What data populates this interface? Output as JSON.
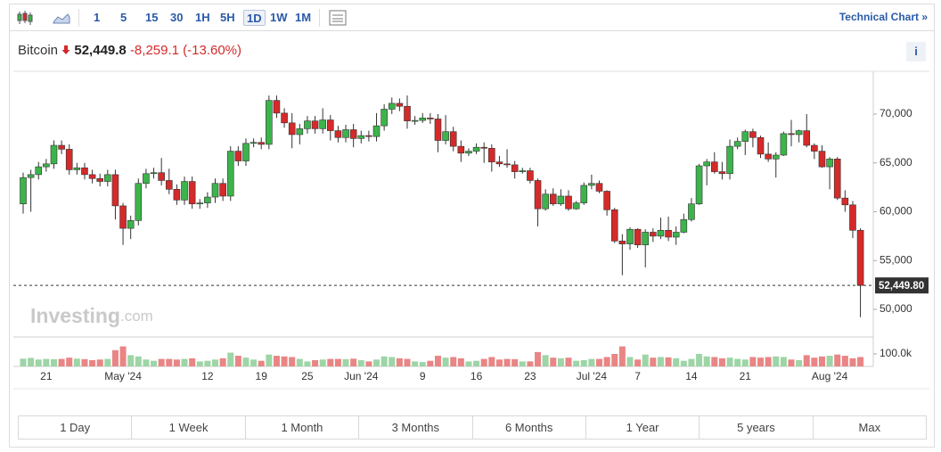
{
  "toolbar": {
    "intervals": [
      "1",
      "5",
      "15",
      "30",
      "1H",
      "5H",
      "1D",
      "1W",
      "1M"
    ],
    "link": "Technical Chart »"
  },
  "header": {
    "name": "Bitcoin",
    "price": "52,449.8",
    "change": "-8,259.1",
    "change_pct": "(-13.60%)",
    "info": "i"
  },
  "watermark": [
    "Investing",
    ".com"
  ],
  "ranges": [
    "1 Day",
    "1 Week",
    "1 Month",
    "3 Months",
    "6 Months",
    "1 Year",
    "5 years",
    "Max"
  ],
  "chart_data": {
    "type": "candlestick",
    "categories": [
      null,
      null,
      null,
      "21",
      null,
      null,
      null,
      null,
      null,
      null,
      null,
      null,
      null,
      "May '24",
      null,
      null,
      null,
      null,
      null,
      null,
      null,
      null,
      null,
      null,
      "12",
      null,
      null,
      null,
      null,
      null,
      null,
      "19",
      null,
      null,
      null,
      null,
      null,
      "25",
      null,
      null,
      null,
      null,
      null,
      null,
      "Jun '24",
      null,
      null,
      null,
      null,
      null,
      null,
      null,
      "9",
      null,
      null,
      null,
      null,
      null,
      null,
      "16",
      null,
      null,
      null,
      null,
      null,
      null,
      "23",
      null,
      null,
      null,
      null,
      null,
      null,
      null,
      "Jul '24",
      null,
      null,
      null,
      null,
      null,
      "7",
      null,
      null,
      null,
      null,
      null,
      null,
      "14",
      null,
      null,
      null,
      null,
      null,
      null,
      "21",
      null,
      null,
      null,
      null,
      null,
      null,
      null,
      null,
      null,
      null,
      "Aug '24",
      null,
      null,
      null,
      null
    ],
    "open": [
      60800,
      63500,
      63800,
      64600,
      64900,
      66800,
      66400,
      64300,
      64500,
      63800,
      63400,
      63100,
      63800,
      60600,
      58300,
      59100,
      62900,
      63900,
      64000,
      63200,
      62300,
      61200,
      63100,
      60800,
      60900,
      61500,
      62900,
      61600,
      66200,
      65200,
      67000,
      67100,
      66900,
      71400,
      70100,
      69100,
      67900,
      68500,
      69300,
      68500,
      69400,
      68300,
      67600,
      68400,
      67500,
      67800,
      67700,
      68800,
      70500,
      71100,
      70800,
      69300,
      69350,
      69600,
      69500,
      67300,
      68200,
      66700,
      66000,
      66200,
      66600,
      66500,
      65100,
      64900,
      64800,
      64100,
      64200,
      63200,
      60300,
      61800,
      60800,
      61600,
      60300,
      60900,
      62700,
      62900,
      62100,
      60200,
      57000,
      56700,
      58200,
      56600,
      57900,
      57500,
      58100,
      57400,
      57900,
      59200,
      60800,
      64700,
      65100,
      64100,
      63900,
      66700,
      67200,
      68200,
      67600,
      65900,
      65400,
      65800,
      68000,
      67900,
      68300,
      66800,
      66200,
      64600,
      65400,
      61400,
      60700,
      58100
    ],
    "high": [
      64000,
      64300,
      65100,
      65400,
      67300,
      67300,
      66900,
      65000,
      65000,
      64300,
      63900,
      64300,
      64300,
      60900,
      59600,
      63400,
      64400,
      64500,
      65500,
      64400,
      62800,
      63600,
      63600,
      61300,
      62000,
      63400,
      63400,
      66700,
      66700,
      67500,
      67500,
      67600,
      71900,
      71900,
      70600,
      70100,
      69000,
      69800,
      69800,
      70600,
      69900,
      68800,
      68900,
      69000,
      68300,
      68300,
      70100,
      71000,
      71700,
      71600,
      71900,
      69800,
      70100,
      70100,
      70000,
      69900,
      68700,
      67300,
      66500,
      67000,
      67100,
      66900,
      65700,
      66400,
      65200,
      64500,
      64500,
      63400,
      62300,
      62400,
      62300,
      62200,
      61100,
      63000,
      63800,
      63200,
      62200,
      60400,
      57700,
      58400,
      58300,
      58200,
      58300,
      59400,
      59500,
      58500,
      59800,
      61400,
      64900,
      65400,
      66100,
      65100,
      67400,
      67600,
      68400,
      68500,
      67800,
      67100,
      66100,
      68200,
      69400,
      68400,
      70000,
      67000,
      66800,
      65600,
      65600,
      62200,
      61100,
      58300
    ],
    "low": [
      59800,
      60000,
      63300,
      64100,
      64400,
      65900,
      63800,
      63800,
      63300,
      62900,
      62600,
      62600,
      59200,
      56600,
      57200,
      58600,
      62400,
      63400,
      62700,
      61800,
      60700,
      60700,
      60300,
      60300,
      60400,
      60900,
      61100,
      61100,
      64700,
      64700,
      66600,
      66400,
      66400,
      69600,
      68600,
      66500,
      66900,
      68000,
      68000,
      68000,
      67300,
      67100,
      67100,
      66600,
      67000,
      67200,
      67200,
      68300,
      70000,
      70300,
      68500,
      68900,
      69100,
      69000,
      66100,
      66900,
      66200,
      65100,
      65700,
      65900,
      65000,
      64100,
      64600,
      64500,
      63400,
      63900,
      62900,
      58500,
      60100,
      60600,
      60600,
      60100,
      60200,
      60700,
      62300,
      61900,
      59600,
      56800,
      53500,
      56100,
      56300,
      54300,
      56900,
      57200,
      57000,
      56600,
      57800,
      59000,
      60700,
      62700,
      63900,
      63300,
      63300,
      66400,
      65800,
      66600,
      65500,
      65100,
      63500,
      65700,
      66700,
      67100,
      66600,
      65400,
      64500,
      62300,
      61200,
      60000,
      57300,
      49200
    ],
    "close": [
      63500,
      63800,
      64600,
      64900,
      66800,
      66400,
      64300,
      64500,
      63800,
      63400,
      63100,
      63800,
      60600,
      58300,
      59100,
      62900,
      63900,
      64000,
      63200,
      62300,
      61200,
      63100,
      60800,
      60900,
      61500,
      62900,
      61600,
      66200,
      65200,
      67000,
      67100,
      66900,
      71400,
      70100,
      69100,
      67900,
      68500,
      69300,
      68500,
      69400,
      68300,
      67600,
      68400,
      67500,
      67800,
      67700,
      68800,
      70500,
      71100,
      70800,
      69300,
      69350,
      69600,
      69500,
      67300,
      68200,
      66700,
      66000,
      66200,
      66600,
      66500,
      65100,
      64900,
      64800,
      64100,
      64200,
      63200,
      60300,
      61800,
      60800,
      61600,
      60300,
      60900,
      62700,
      62900,
      62100,
      60200,
      57000,
      56700,
      58200,
      56600,
      57900,
      57500,
      58100,
      57400,
      57900,
      59200,
      60800,
      64700,
      65100,
      64100,
      63900,
      66700,
      67200,
      68200,
      67600,
      65900,
      65400,
      65800,
      68000,
      67900,
      68300,
      66800,
      66200,
      64600,
      65400,
      61400,
      60700,
      58100,
      52449.8
    ],
    "up_color": "#3cb44b",
    "down_color": "#d42a2a",
    "ylim": [
      47170,
      74380
    ],
    "yticks": [
      {
        "value": 50000,
        "label": "50,000"
      },
      {
        "value": 55000,
        "label": "55,000"
      },
      {
        "value": 60000,
        "label": "60,000"
      },
      {
        "value": 65000,
        "label": "65,000"
      },
      {
        "value": 70000,
        "label": "70,000"
      }
    ],
    "last_price": {
      "value": 52449.8,
      "label": "52,449.80"
    },
    "grid": false,
    "volume": {
      "values": [
        62000,
        68000,
        55000,
        60000,
        58000,
        60000,
        70000,
        62000,
        58000,
        50000,
        55000,
        60000,
        130000,
        160000,
        90000,
        80000,
        55000,
        45000,
        60000,
        60000,
        55000,
        60000,
        65000,
        40000,
        45000,
        55000,
        65000,
        110000,
        85000,
        70000,
        55000,
        45000,
        95000,
        85000,
        80000,
        75000,
        60000,
        40000,
        50000,
        55000,
        60000,
        60000,
        58000,
        62000,
        50000,
        40000,
        55000,
        80000,
        75000,
        65000,
        60000,
        40000,
        35000,
        45000,
        85000,
        70000,
        75000,
        65000,
        40000,
        45000,
        60000,
        75000,
        55000,
        60000,
        58000,
        40000,
        40000,
        115000,
        90000,
        70000,
        65000,
        70000,
        45000,
        50000,
        60000,
        60000,
        75000,
        100000,
        160000,
        75000,
        55000,
        95000,
        70000,
        75000,
        72000,
        65000,
        45000,
        60000,
        100000,
        80000,
        75000,
        65000,
        70000,
        60000,
        55000,
        75000,
        70000,
        75000,
        80000,
        75000,
        55000,
        50000,
        90000,
        70000,
        80000,
        85000,
        95000,
        85000,
        65000,
        75000
      ],
      "up_color": "#9dd5a6",
      "down_color": "#e98585",
      "ylim": [
        0,
        221000
      ],
      "yticks": [
        {
          "value": 100000,
          "label": "100.0k"
        }
      ]
    }
  }
}
